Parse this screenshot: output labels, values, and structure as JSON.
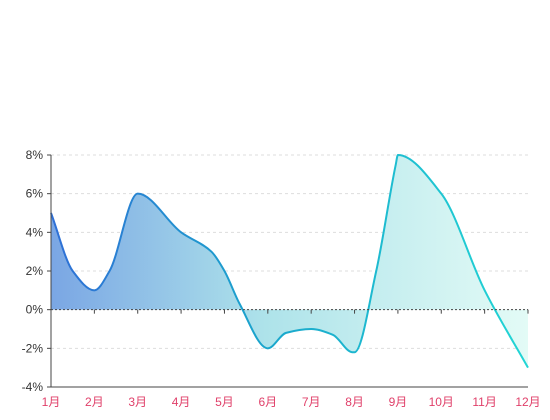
{
  "chart_data": {
    "type": "area",
    "categories": [
      "1月",
      "2月",
      "3月",
      "4月",
      "5月",
      "6月",
      "7月",
      "8月",
      "9月",
      "10月",
      "11月",
      "12月"
    ],
    "x": [
      0.0,
      0.5,
      1.0,
      1.35,
      2.0,
      3.0,
      3.7,
      4.0,
      4.35,
      5.0,
      5.42,
      6.0,
      6.5,
      6.95,
      7.0,
      7.5,
      7.95,
      8.0,
      9.0,
      10.0,
      11.0
    ],
    "series": [
      {
        "values": [
          5.0,
          2.0,
          1.0,
          2.0,
          6.0,
          4.0,
          3.0,
          2.0,
          0.3,
          -2.0,
          -1.2,
          -1.0,
          -1.3,
          -2.2,
          -2.2,
          2.0,
          7.5,
          8.0,
          6.0,
          1.0,
          -3.0
        ]
      }
    ],
    "ylim": [
      -4,
      8
    ],
    "yticks": [
      -4,
      -2,
      0,
      2,
      4,
      6,
      8
    ],
    "ytick_labels": [
      "-4%",
      "-2%",
      "0%",
      "2%",
      "4%",
      "6%",
      "8%"
    ],
    "grid": true,
    "colors": {
      "line_start": "#2f6fd6",
      "line_mid": "#1aa6cc",
      "line_end": "#22d5d5",
      "fill_start": "#7aa6e4",
      "fill_mid": "#aee3ea",
      "fill_end": "#e3fbf6",
      "tick_label": "#e0406a",
      "grid": "#dddddd",
      "axis": "#444444"
    }
  }
}
